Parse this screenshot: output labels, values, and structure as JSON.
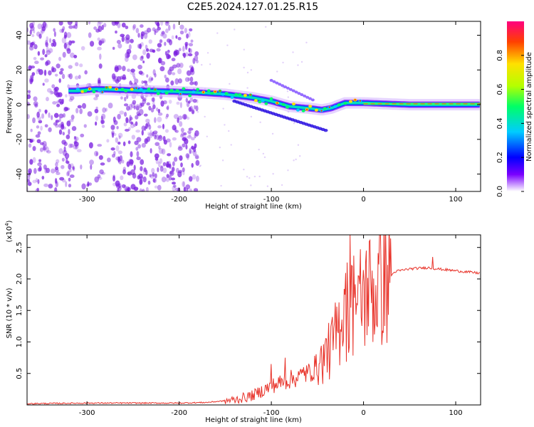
{
  "title": "C2E5.2024.127.01.25.R15",
  "colors": {
    "snr_line": "#e8332a",
    "spectrum_scatter": "#7a1fe0",
    "frame": "#000000"
  },
  "chart_data": [
    {
      "id": "spectrogram",
      "type": "heatmap",
      "xlabel": "Height of straight line (km)",
      "ylabel": "Frequency (Hz)",
      "xlim": [
        -365,
        127
      ],
      "ylim": [
        -50,
        48
      ],
      "xticks": [
        -300,
        -200,
        -100,
        0,
        100
      ],
      "yticks": [
        -40,
        -20,
        0,
        20,
        40
      ],
      "grid": false,
      "colorbar": {
        "label": "Normalized spectral amplitude",
        "range": [
          0.0,
          1.0
        ],
        "ticks": [
          0.0,
          0.2,
          0.4,
          0.6,
          0.8
        ],
        "colormap": [
          "#ffffff",
          "#7a00ff",
          "#0000ff",
          "#00ccff",
          "#00ff66",
          "#b4ff00",
          "#ffe000",
          "#ff4000",
          "#ff0080"
        ]
      },
      "ridge": [
        {
          "x": -310,
          "y": 8
        },
        {
          "x": -290,
          "y": 9
        },
        {
          "x": -180,
          "y": 7
        },
        {
          "x": -150,
          "y": 6
        },
        {
          "x": -120,
          "y": 4
        },
        {
          "x": -100,
          "y": 2
        },
        {
          "x": -80,
          "y": -1
        },
        {
          "x": -60,
          "y": -2
        },
        {
          "x": -45,
          "y": -3
        },
        {
          "x": -35,
          "y": -2
        },
        {
          "x": -20,
          "y": 1
        },
        {
          "x": 0,
          "y": 1
        },
        {
          "x": 50,
          "y": 0
        },
        {
          "x": 127,
          "y": 0
        }
      ],
      "noise_region_x": [
        -365,
        -180
      ]
    },
    {
      "id": "snr",
      "type": "line",
      "xlabel": "Height of straight line (km)",
      "ylabel": "SNR (10 * v/v)",
      "multiplier": "(x10",
      "multiplier_exp": "4",
      "multiplier_close": ")",
      "xlim": [
        -365,
        127
      ],
      "ylim": [
        0,
        2.7
      ],
      "xticks": [
        -300,
        -200,
        -100,
        0,
        100
      ],
      "yticks": [
        0.5,
        1.0,
        1.5,
        2.0,
        2.5
      ],
      "grid": false,
      "envelope": [
        {
          "x": -365,
          "y": 0.02
        },
        {
          "x": -300,
          "y": 0.03
        },
        {
          "x": -200,
          "y": 0.03
        },
        {
          "x": -170,
          "y": 0.04
        },
        {
          "x": -140,
          "y": 0.08
        },
        {
          "x": -120,
          "y": 0.15
        },
        {
          "x": -100,
          "y": 0.3
        },
        {
          "x": -80,
          "y": 0.4
        },
        {
          "x": -60,
          "y": 0.5
        },
        {
          "x": -45,
          "y": 0.7
        },
        {
          "x": -35,
          "y": 0.9
        },
        {
          "x": -25,
          "y": 1.3
        },
        {
          "x": -15,
          "y": 1.6
        },
        {
          "x": -5,
          "y": 1.7
        },
        {
          "x": 5,
          "y": 1.8
        },
        {
          "x": 15,
          "y": 1.9
        },
        {
          "x": 25,
          "y": 2.0
        },
        {
          "x": 35,
          "y": 2.12
        },
        {
          "x": 50,
          "y": 2.16
        },
        {
          "x": 70,
          "y": 2.18
        },
        {
          "x": 80,
          "y": 2.16
        },
        {
          "x": 100,
          "y": 2.13
        },
        {
          "x": 127,
          "y": 2.09
        }
      ],
      "spikes": [
        {
          "x": -100,
          "y": 0.65
        },
        {
          "x": -85,
          "y": 0.75
        },
        {
          "x": -65,
          "y": 0.6
        },
        {
          "x": -40,
          "y": 1.05
        },
        {
          "x": -33,
          "y": 1.15
        },
        {
          "x": -25,
          "y": 1.2
        },
        {
          "x": -20,
          "y": 1.75
        },
        {
          "x": -15,
          "y": 2.7
        },
        {
          "x": -10,
          "y": 1.7
        },
        {
          "x": -5,
          "y": 2.55
        },
        {
          "x": 3,
          "y": 2.45
        },
        {
          "x": 12,
          "y": 2.55
        },
        {
          "x": 75,
          "y": 2.35
        }
      ]
    }
  ]
}
